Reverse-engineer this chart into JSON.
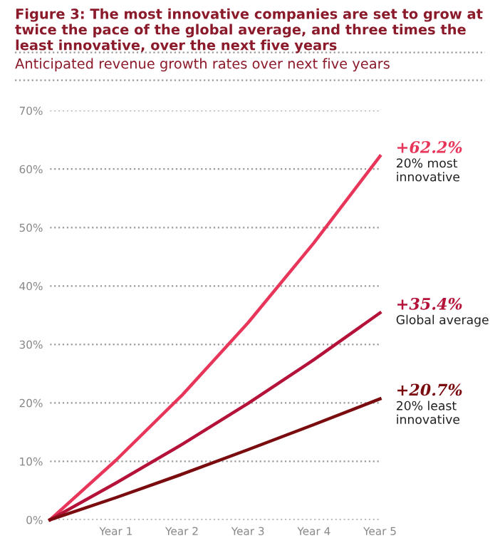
{
  "chart_data": {
    "type": "line",
    "title": "Figure 3: The most innovative companies are set to grow at twice the pace of the global average, and three times the least innovative, over the next five years",
    "subtitle": "Anticipated revenue growth rates over next five years",
    "categories": [
      null,
      "Year 1",
      "Year 2",
      "Year 3",
      "Year 4",
      "Year 5"
    ],
    "ylim": [
      0,
      70
    ],
    "yticks": [
      {
        "value": 0,
        "label": "0%"
      },
      {
        "value": 10,
        "label": "10%"
      },
      {
        "value": 20,
        "label": "20%"
      },
      {
        "value": 30,
        "label": "30%"
      },
      {
        "value": 40,
        "label": "40%"
      },
      {
        "value": 50,
        "label": "50%"
      },
      {
        "value": 60,
        "label": "60%"
      },
      {
        "value": 70,
        "label": "70%"
      }
    ],
    "grid": "y",
    "legend": false,
    "marker": "none",
    "line_style": "solid",
    "series": [
      {
        "name": "20% most innovative",
        "color": "#e8365a",
        "values": [
          0,
          10.2,
          21.3,
          33.7,
          47.4,
          62.2
        ],
        "value_labels": [
          null,
          null,
          null,
          null,
          null,
          "+62.2%"
        ]
      },
      {
        "name": "Global average",
        "color": "#b5123a",
        "values": [
          0,
          6.3,
          12.9,
          19.9,
          27.4,
          35.4
        ],
        "value_labels": [
          null,
          null,
          null,
          null,
          null,
          "+35.4%"
        ]
      },
      {
        "name": "20% least innovative",
        "color": "#7a0c10",
        "values": [
          0,
          3.8,
          7.8,
          12.0,
          16.3,
          20.7
        ],
        "value_labels": [
          null,
          null,
          null,
          null,
          null,
          "+20.7%"
        ]
      }
    ]
  }
}
